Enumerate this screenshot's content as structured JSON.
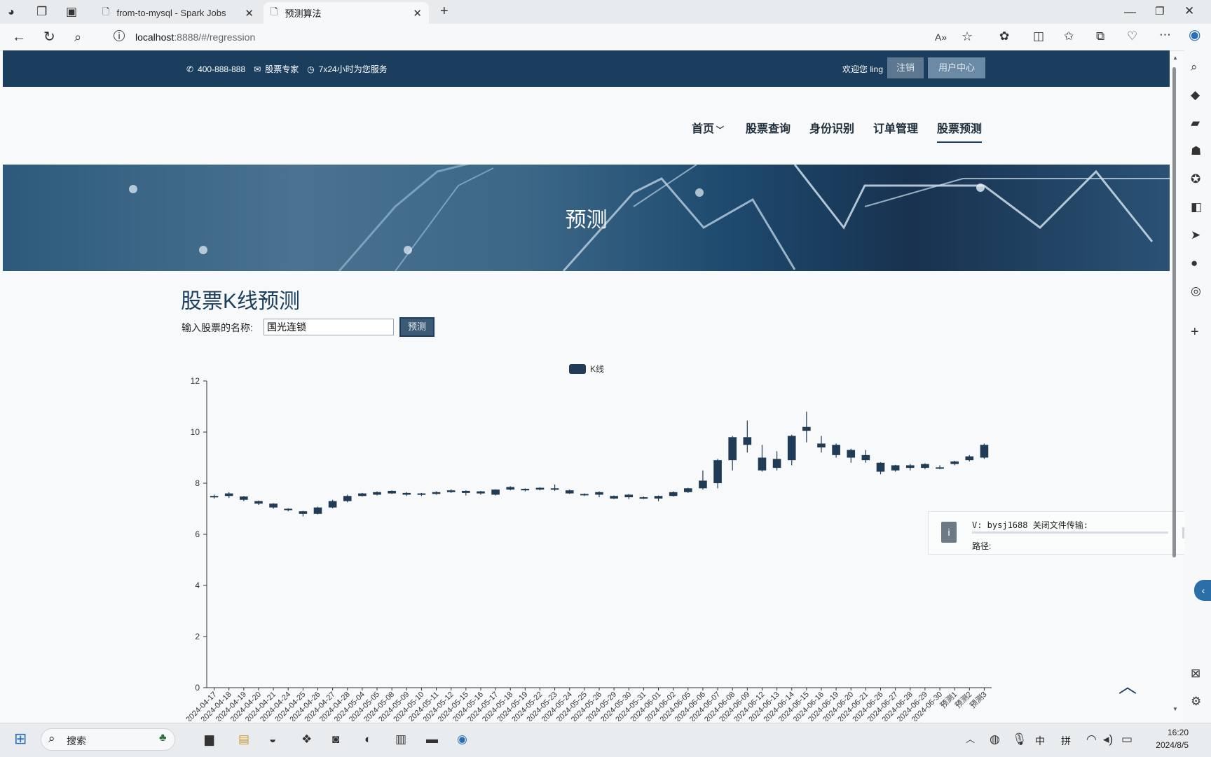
{
  "browser": {
    "tabs": [
      {
        "label": "from-to-mysql - Spark Jobs",
        "active": false
      },
      {
        "label": "预测算法",
        "active": true
      }
    ],
    "url_host": "localhost",
    "url_rest": ":8888/#/regression"
  },
  "topbar": {
    "phone": "400-888-888",
    "email": "股票专家",
    "service": "7x24小时为您服务",
    "welcome": "欢迎您 ling",
    "logout": "注销",
    "user_center": "用户中心"
  },
  "nav": {
    "items": [
      {
        "label": "首页",
        "dropdown": true
      },
      {
        "label": "股票查询"
      },
      {
        "label": "身份识别"
      },
      {
        "label": "订单管理"
      },
      {
        "label": "股票预测",
        "active": true
      }
    ]
  },
  "banner": {
    "title": "预测"
  },
  "main": {
    "heading": "股票K线预测",
    "input_label": "输入股票的名称:",
    "input_value": "国光连锁",
    "predict_button": "预测"
  },
  "chart_data": {
    "type": "candlestick",
    "legend": "K线",
    "legend_position": "top-center",
    "ylim": [
      0,
      12
    ],
    "yticks": [
      0,
      2,
      4,
      6,
      8,
      10,
      12
    ],
    "categories": [
      "2024-04-17",
      "2024-04-18",
      "2024-04-19",
      "2024-04-20",
      "2024-04-21",
      "2024-04-24",
      "2024-04-25",
      "2024-04-26",
      "2024-04-27",
      "2024-04-28",
      "2024-05-04",
      "2024-05-05",
      "2024-05-08",
      "2024-05-09",
      "2024-05-10",
      "2024-05-11",
      "2024-05-12",
      "2024-05-15",
      "2024-05-16",
      "2024-05-17",
      "2024-05-18",
      "2024-05-19",
      "2024-05-22",
      "2024-05-23",
      "2024-05-24",
      "2024-05-25",
      "2024-05-26",
      "2024-05-29",
      "2024-05-30",
      "2024-05-31",
      "2024-06-01",
      "2024-06-02",
      "2024-06-05",
      "2024-06-06",
      "2024-06-07",
      "2024-06-08",
      "2024-06-09",
      "2024-06-12",
      "2024-06-13",
      "2024-06-14",
      "2024-06-15",
      "2024-06-16",
      "2024-06-19",
      "2024-06-20",
      "2024-06-21",
      "2024-06-26",
      "2024-06-27",
      "2024-06-28",
      "2024-06-29",
      "2024-06-30",
      "预测1",
      "预测2",
      "预测3"
    ],
    "ohlc": [
      [
        7.45,
        7.5,
        7.4,
        7.55
      ],
      [
        7.5,
        7.6,
        7.42,
        7.65
      ],
      [
        7.48,
        7.35,
        7.3,
        7.5
      ],
      [
        7.3,
        7.2,
        7.15,
        7.32
      ],
      [
        7.2,
        7.05,
        7.0,
        7.22
      ],
      [
        7.0,
        6.95,
        6.9,
        7.02
      ],
      [
        6.9,
        6.8,
        6.7,
        6.92
      ],
      [
        6.8,
        7.05,
        6.78,
        7.08
      ],
      [
        7.05,
        7.3,
        7.02,
        7.35
      ],
      [
        7.3,
        7.5,
        7.25,
        7.55
      ],
      [
        7.5,
        7.6,
        7.48,
        7.62
      ],
      [
        7.55,
        7.65,
        7.52,
        7.68
      ],
      [
        7.6,
        7.7,
        7.58,
        7.72
      ],
      [
        7.62,
        7.55,
        7.5,
        7.65
      ],
      [
        7.55,
        7.6,
        7.5,
        7.62
      ],
      [
        7.58,
        7.65,
        7.55,
        7.68
      ],
      [
        7.65,
        7.72,
        7.62,
        7.76
      ],
      [
        7.7,
        7.62,
        7.52,
        7.72
      ],
      [
        7.6,
        7.68,
        7.55,
        7.7
      ],
      [
        7.55,
        7.75,
        7.52,
        7.76
      ],
      [
        7.75,
        7.85,
        7.72,
        7.88
      ],
      [
        7.78,
        7.72,
        7.68,
        7.8
      ],
      [
        7.75,
        7.82,
        7.72,
        7.84
      ],
      [
        7.8,
        7.75,
        7.7,
        7.95
      ],
      [
        7.72,
        7.6,
        7.58,
        7.75
      ],
      [
        7.58,
        7.55,
        7.5,
        7.6
      ],
      [
        7.55,
        7.65,
        7.45,
        7.68
      ],
      [
        7.5,
        7.4,
        7.38,
        7.52
      ],
      [
        7.45,
        7.55,
        7.38,
        7.58
      ],
      [
        7.45,
        7.4,
        7.38,
        7.48
      ],
      [
        7.4,
        7.5,
        7.3,
        7.52
      ],
      [
        7.5,
        7.65,
        7.48,
        7.68
      ],
      [
        7.65,
        7.8,
        7.62,
        7.82
      ],
      [
        7.8,
        8.1,
        7.75,
        8.5
      ],
      [
        8.0,
        8.9,
        7.8,
        8.95
      ],
      [
        8.9,
        9.8,
        8.5,
        9.85
      ],
      [
        9.8,
        9.5,
        9.2,
        10.45
      ],
      [
        9.0,
        8.5,
        8.45,
        9.5
      ],
      [
        8.6,
        8.95,
        8.5,
        9.25
      ],
      [
        8.9,
        9.85,
        8.7,
        9.9
      ],
      [
        10.2,
        10.05,
        9.6,
        10.8
      ],
      [
        9.55,
        9.4,
        9.2,
        9.85
      ],
      [
        9.5,
        9.1,
        9.0,
        9.55
      ],
      [
        9.3,
        9.0,
        8.8,
        9.35
      ],
      [
        9.1,
        8.9,
        8.8,
        9.3
      ],
      [
        8.8,
        8.45,
        8.35,
        8.82
      ],
      [
        8.7,
        8.5,
        8.45,
        8.72
      ],
      [
        8.6,
        8.7,
        8.5,
        8.75
      ],
      [
        8.75,
        8.6,
        8.55,
        8.78
      ],
      [
        8.6,
        8.62,
        8.55,
        8.7
      ],
      [
        8.75,
        8.85,
        8.7,
        8.88
      ],
      [
        8.9,
        9.05,
        8.85,
        9.1
      ],
      [
        9.0,
        9.5,
        8.95,
        9.55
      ]
    ]
  },
  "notification": {
    "title": "V: bysj1688 关闭文件传输:",
    "path_label": "路径:"
  },
  "taskbar": {
    "search": "搜索",
    "ime_lang": "中",
    "ime_mode": "拼",
    "time": "16:20",
    "date": "2024/8/5"
  },
  "colors": {
    "topbar": "#1b3e5e",
    "candle": "#1f3b55",
    "nav_active_underline": "#1b3e5e"
  }
}
